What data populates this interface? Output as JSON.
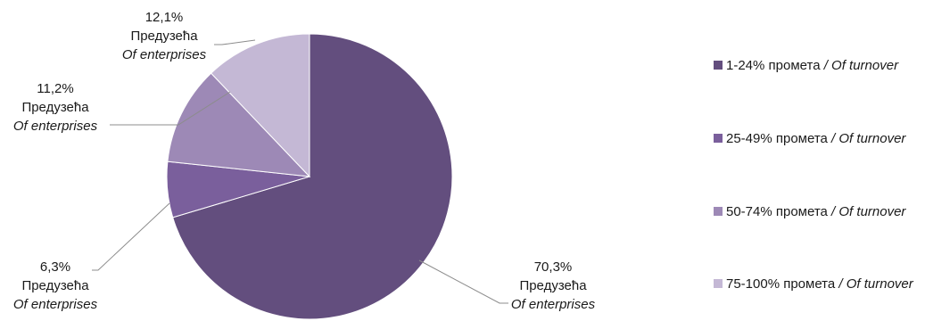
{
  "chart_data": {
    "type": "pie",
    "start_angle_deg": 0,
    "direction": "clockwise",
    "slices": [
      {
        "value": 70.3,
        "percent_label": "70,3%",
        "line1": "Предузећа",
        "line2": "Of enterprises",
        "legend_main": "1-24% промета",
        "legend_italic": "/ Of turnover",
        "color": "#634e7e"
      },
      {
        "value": 6.3,
        "percent_label": "6,3%",
        "line1": "Предузећа",
        "line2": "Of enterprises",
        "legend_main": "25-49% промета",
        "legend_italic": "/ Of turnover",
        "color": "#7a5f9c"
      },
      {
        "value": 11.2,
        "percent_label": "11,2%",
        "line1": "Предузећа",
        "line2": "Of enterprises",
        "legend_main": "50-74% промета",
        "legend_italic": "/ Of turnover",
        "color": "#9d89b6"
      },
      {
        "value": 12.1,
        "percent_label": "12,1%",
        "line1": "Предузећа",
        "line2": "Of enterprises",
        "legend_main": "75-100% промета",
        "legend_italic": "/ Of turnover",
        "color": "#c4b8d5"
      }
    ],
    "legend_position": "right"
  }
}
